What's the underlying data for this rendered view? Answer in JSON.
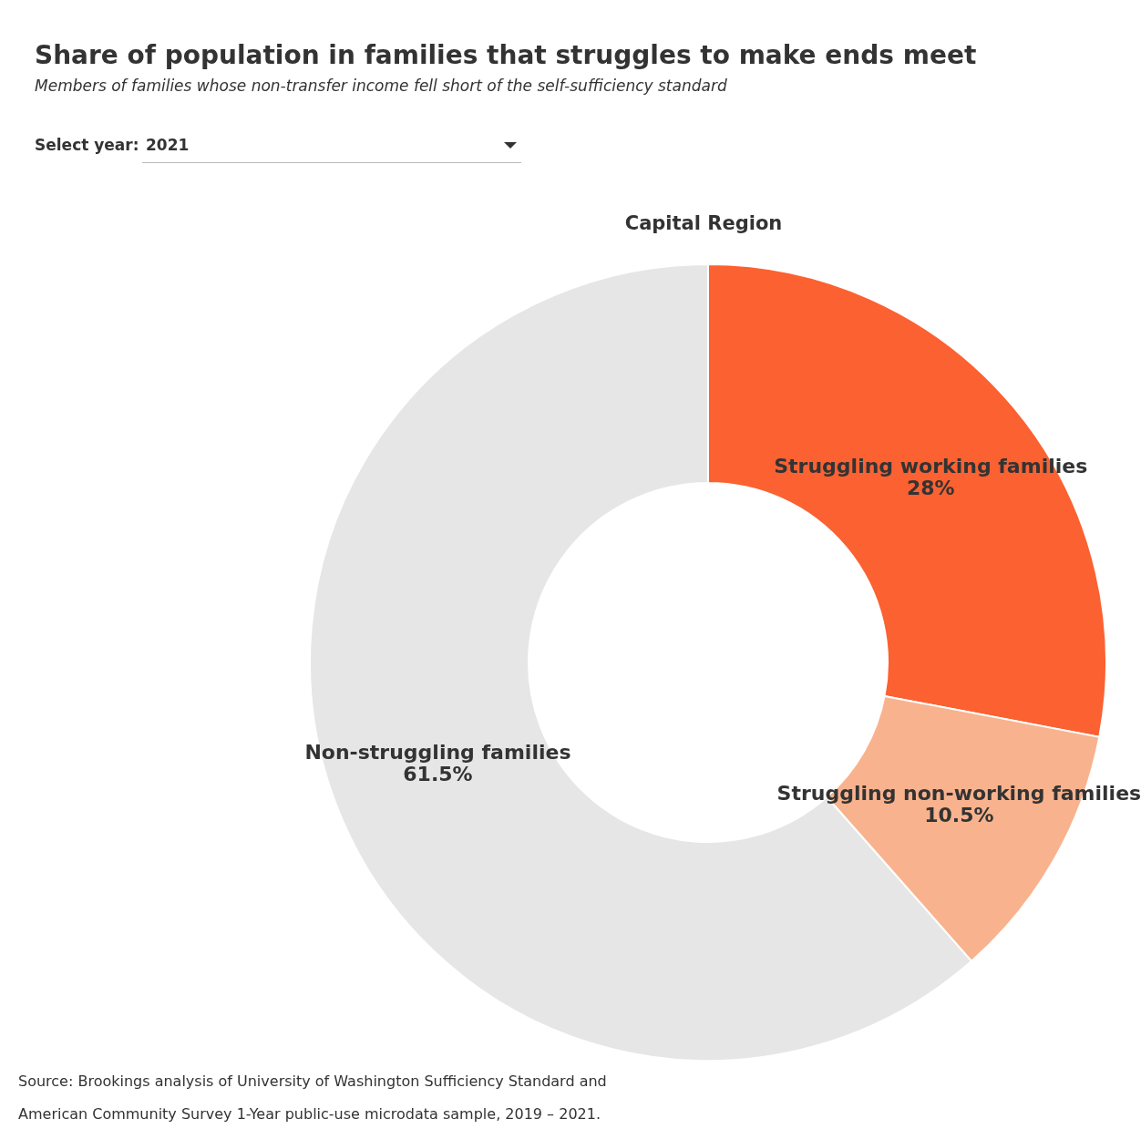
{
  "chart_data": {
    "type": "donut",
    "title": "Share of population in families that struggles to make ends meet",
    "subtitle": "Members of families whose non-transfer income fell short of the self-sufficiency standard",
    "categories": [
      "Struggling working families",
      "Struggling non-working families",
      "Non-struggling families"
    ],
    "values": [
      28,
      10.5,
      61.5
    ],
    "colors": [
      "#fc6131",
      "#f8b38e",
      "#e6e6e6"
    ],
    "value_labels": [
      "28%",
      "10.5%",
      "61.5%"
    ],
    "annotations": [
      "Select year:",
      "2021",
      "Capital Region",
      "Source: Brookings analysis of University of Washington Sufficiency Standard and",
      "American Community Survey 1-Year public-use microdata sample, 2019 – 2021."
    ]
  }
}
